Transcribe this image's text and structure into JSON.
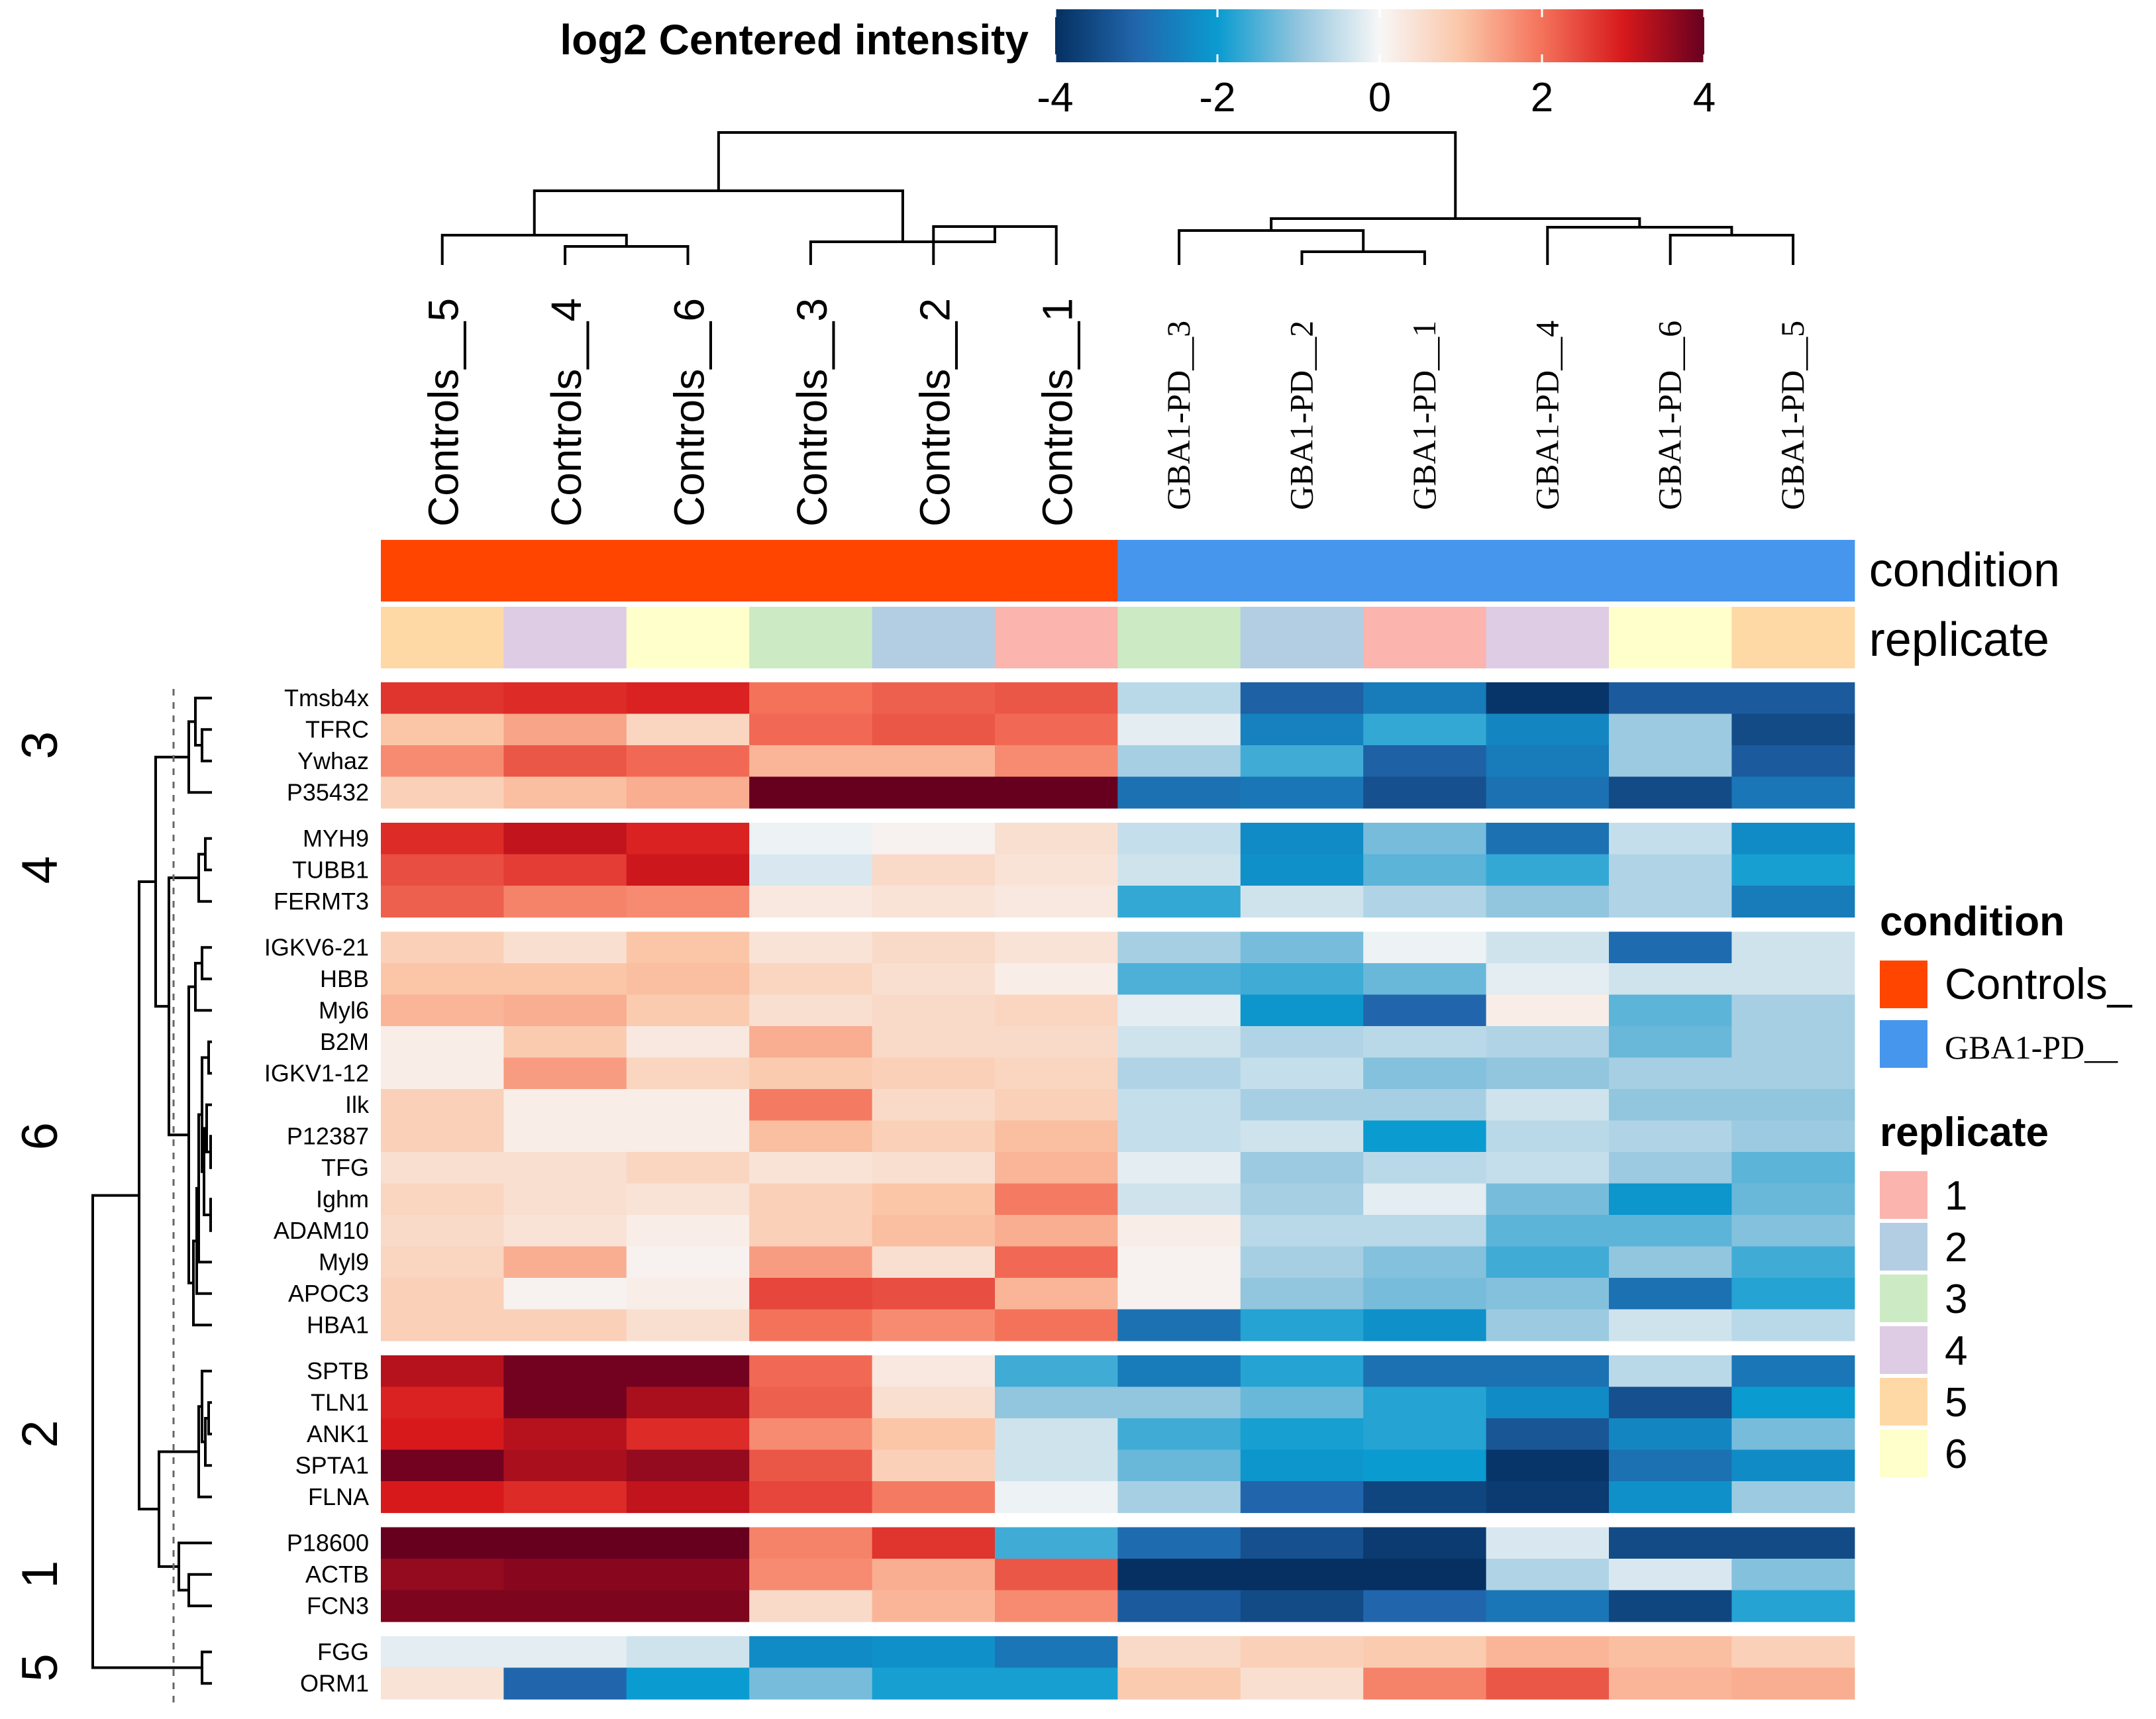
{
  "chart_data": {
    "type": "heatmap",
    "title": "log2 Centered intensity",
    "colorbar": {
      "min": -4,
      "max": 4,
      "ticks": [
        "-4",
        "-2",
        "0",
        "2",
        "4"
      ],
      "palette": [
        "#053061",
        "#2166ac",
        "#0a9bd0",
        "#92c5de",
        "#f7f7f7",
        "#fbc6a8",
        "#f4725a",
        "#d7191c",
        "#67001f"
      ]
    },
    "columns": [
      "Controls__5",
      "Controls__4",
      "Controls__6",
      "Controls__3",
      "Controls__2",
      "Controls__1",
      "GBA1-PD__3",
      "GBA1-PD__2",
      "GBA1-PD__1",
      "GBA1-PD__4",
      "GBA1-PD__6",
      "GBA1-PD__5"
    ],
    "column_condition": [
      "Controls_",
      "Controls_",
      "Controls_",
      "Controls_",
      "Controls_",
      "Controls_",
      "GBA1-PD__",
      "GBA1-PD__",
      "GBA1-PD__",
      "GBA1-PD__",
      "GBA1-PD__",
      "GBA1-PD__"
    ],
    "column_replicate": [
      "5",
      "4",
      "6",
      "3",
      "2",
      "1",
      "3",
      "2",
      "1",
      "4",
      "6",
      "5"
    ],
    "annotation_rows": [
      "condition",
      "replicate"
    ],
    "legends": {
      "condition": {
        "title": "condition",
        "items": [
          {
            "label": "Controls_",
            "color": "#ff4500"
          },
          {
            "label": "GBA1-PD__",
            "color": "#4696ee"
          }
        ]
      },
      "replicate": {
        "title": "replicate",
        "items": [
          {
            "label": "1",
            "color": "#fbb4ae"
          },
          {
            "label": "2",
            "color": "#b3cde3"
          },
          {
            "label": "3",
            "color": "#ccebc5"
          },
          {
            "label": "4",
            "color": "#decbe4"
          },
          {
            "label": "5",
            "color": "#fed9a6"
          },
          {
            "label": "6",
            "color": "#ffffcc"
          }
        ]
      }
    },
    "row_groups": [
      {
        "cluster": "3",
        "rows": [
          {
            "name": "Tmsb4x",
            "values": [
              2.7,
              2.8,
              2.9,
              2.0,
              2.2,
              2.3,
              -0.6,
              -3.1,
              -2.6,
              -3.9,
              -3.2,
              -3.2
            ]
          },
          {
            "name": "TFRC",
            "values": [
              1.0,
              1.4,
              0.7,
              2.1,
              2.3,
              2.1,
              -0.2,
              -2.5,
              -1.7,
              -2.4,
              -0.9,
              -3.5
            ]
          },
          {
            "name": "Ywhaz",
            "values": [
              1.7,
              2.3,
              2.1,
              1.2,
              1.2,
              1.7,
              -0.8,
              -1.6,
              -3.1,
              -2.6,
              -0.9,
              -3.2
            ]
          },
          {
            "name": "P35432",
            "values": [
              0.8,
              1.1,
              1.3,
              4.0,
              4.0,
              4.0,
              -2.8,
              -2.7,
              -3.4,
              -2.8,
              -3.5,
              -2.7
            ]
          }
        ]
      },
      {
        "cluster": "4",
        "rows": [
          {
            "name": "MYH9",
            "values": [
              2.8,
              3.2,
              2.9,
              -0.1,
              0.1,
              0.5,
              -0.5,
              -2.3,
              -1.2,
              -2.8,
              -0.5,
              -2.3
            ]
          },
          {
            "name": "TUBB1",
            "values": [
              2.4,
              2.6,
              3.1,
              -0.3,
              0.6,
              0.4,
              -0.4,
              -2.2,
              -1.4,
              -1.7,
              -0.7,
              -1.9
            ]
          },
          {
            "name": "FERMT3",
            "values": [
              2.2,
              1.8,
              1.7,
              0.3,
              0.4,
              0.3,
              -1.7,
              -0.4,
              -0.7,
              -1.0,
              -0.7,
              -2.6
            ]
          }
        ]
      },
      {
        "cluster": "6",
        "rows": [
          {
            "name": "IGKV6-21",
            "values": [
              0.8,
              0.5,
              1.0,
              0.4,
              0.6,
              0.4,
              -0.8,
              -1.2,
              -0.1,
              -0.4,
              -2.9,
              -0.4
            ]
          },
          {
            "name": "HBB",
            "values": [
              1.0,
              1.0,
              1.1,
              0.7,
              0.5,
              0.2,
              -1.5,
              -1.6,
              -1.3,
              -0.2,
              -0.4,
              -0.4
            ]
          },
          {
            "name": "Myl6",
            "values": [
              1.2,
              1.3,
              0.9,
              0.5,
              0.6,
              0.7,
              -0.2,
              -2.1,
              -3.0,
              0.2,
              -1.4,
              -0.8
            ]
          },
          {
            "name": "B2M",
            "values": [
              0.2,
              0.9,
              0.3,
              1.3,
              0.6,
              0.6,
              -0.4,
              -0.7,
              -0.6,
              -0.7,
              -1.3,
              -0.8
            ]
          },
          {
            "name": "IGKV1-12",
            "values": [
              0.2,
              1.5,
              0.7,
              0.9,
              0.8,
              0.7,
              -0.7,
              -0.5,
              -1.1,
              -1.0,
              -0.8,
              -0.8
            ]
          },
          {
            "name": "Ilk",
            "values": [
              0.8,
              0.2,
              0.2,
              1.9,
              0.6,
              0.8,
              -0.5,
              -0.8,
              -0.8,
              -0.4,
              -1.0,
              -1.0
            ]
          },
          {
            "name": "P12387",
            "values": [
              0.8,
              0.2,
              0.2,
              1.1,
              0.8,
              1.1,
              -0.5,
              -0.4,
              -2.0,
              -0.6,
              -0.7,
              -0.9
            ]
          },
          {
            "name": "TFG",
            "values": [
              0.5,
              0.5,
              0.7,
              0.4,
              0.5,
              1.2,
              -0.2,
              -0.9,
              -0.6,
              -0.5,
              -0.9,
              -1.4
            ]
          },
          {
            "name": "Ighm",
            "values": [
              0.7,
              0.5,
              0.4,
              0.8,
              1.0,
              1.9,
              -0.4,
              -0.8,
              -0.2,
              -1.2,
              -2.1,
              -1.3
            ]
          },
          {
            "name": "ADAM10",
            "values": [
              0.6,
              0.4,
              0.2,
              0.8,
              1.1,
              1.3,
              0.2,
              -0.6,
              -0.6,
              -1.4,
              -1.4,
              -1.1
            ]
          },
          {
            "name": "Myl9",
            "values": [
              0.7,
              1.3,
              0.1,
              1.5,
              0.5,
              2.1,
              0.1,
              -0.8,
              -1.1,
              -1.6,
              -1.0,
              -1.6
            ]
          },
          {
            "name": "APOC3",
            "values": [
              0.8,
              0.1,
              0.2,
              2.5,
              2.4,
              1.2,
              0.1,
              -1.0,
              -1.2,
              -1.1,
              -2.8,
              -1.8
            ]
          },
          {
            "name": "HBA1",
            "values": [
              0.8,
              0.8,
              0.5,
              2.0,
              1.7,
              2.0,
              -2.8,
              -1.8,
              -2.2,
              -0.9,
              -0.4,
              -0.6
            ]
          }
        ]
      },
      {
        "cluster": "2",
        "rows": [
          {
            "name": "SPTB",
            "values": [
              3.3,
              3.9,
              3.9,
              2.1,
              0.3,
              -1.6,
              -2.6,
              -1.8,
              -2.8,
              -2.8,
              -0.6,
              -2.7
            ]
          },
          {
            "name": "TLN1",
            "values": [
              2.9,
              3.9,
              3.4,
              2.2,
              0.5,
              -1.0,
              -1.0,
              -1.3,
              -1.8,
              -2.3,
              -3.4,
              -2.0
            ]
          },
          {
            "name": "ANK1",
            "values": [
              3.0,
              3.3,
              2.8,
              1.7,
              1.0,
              -0.4,
              -1.6,
              -1.9,
              -1.8,
              -3.3,
              -2.4,
              -1.2
            ]
          },
          {
            "name": "SPTA1",
            "values": [
              3.9,
              3.4,
              3.6,
              2.3,
              0.8,
              -0.4,
              -1.3,
              -2.1,
              -2.0,
              -3.9,
              -2.8,
              -2.3
            ]
          },
          {
            "name": "FLNA",
            "values": [
              3.0,
              2.8,
              3.2,
              2.5,
              1.9,
              -0.1,
              -0.8,
              -3.0,
              -3.6,
              -3.8,
              -2.2,
              -0.9
            ]
          }
        ]
      },
      {
        "cluster": "1",
        "rows": [
          {
            "name": "P18600",
            "values": [
              4.0,
              4.0,
              4.0,
              1.8,
              2.7,
              -1.6,
              -2.9,
              -3.4,
              -3.8,
              -0.3,
              -3.5,
              -3.5
            ]
          },
          {
            "name": "ACTB",
            "values": [
              3.6,
              3.7,
              3.7,
              1.7,
              1.3,
              2.3,
              -4.0,
              -4.0,
              -4.0,
              -0.7,
              -0.3,
              -1.1
            ]
          },
          {
            "name": "FCN3",
            "values": [
              3.8,
              3.8,
              3.8,
              0.6,
              1.2,
              1.7,
              -3.2,
              -3.5,
              -3.0,
              -2.7,
              -3.6,
              -1.8
            ]
          }
        ]
      },
      {
        "cluster": "5",
        "rows": [
          {
            "name": "FGG",
            "values": [
              -0.2,
              -0.2,
              -0.4,
              -2.3,
              -2.2,
              -2.7,
              0.6,
              0.8,
              0.9,
              1.2,
              1.1,
              0.8
            ]
          },
          {
            "name": "ORM1",
            "values": [
              0.4,
              -3.0,
              -2.0,
              -1.2,
              -1.9,
              -1.9,
              0.9,
              0.5,
              1.8,
              2.3,
              1.2,
              1.3
            ]
          }
        ]
      }
    ]
  }
}
